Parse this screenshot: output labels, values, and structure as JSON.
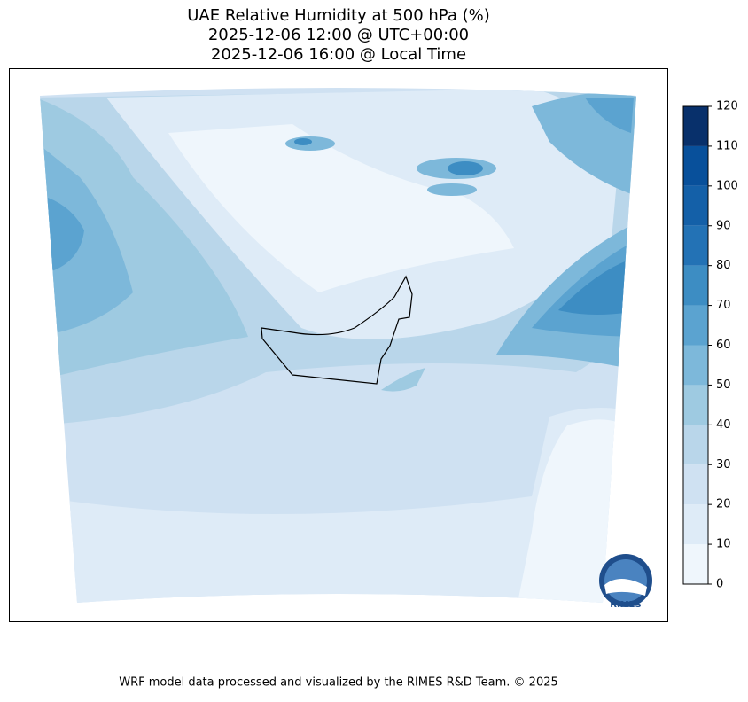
{
  "title": [
    "UAE Relative Humidity at 500 hPa (%)",
    "2025-12-06 12:00 @ UTC+00:00",
    "2025-12-06 16:00 @ Local Time"
  ],
  "colorbar": {
    "ticks": [
      0,
      10,
      20,
      30,
      40,
      50,
      60,
      70,
      80,
      90,
      100,
      110,
      120
    ],
    "colors": [
      "#eff6fc",
      "#deebf7",
      "#cfe1f2",
      "#b9d6ea",
      "#9ecae1",
      "#7db8da",
      "#5ba3d0",
      "#3d8dc3",
      "#2372b5",
      "#1460a8",
      "#08509b",
      "#08306b"
    ]
  },
  "logo": {
    "label": "RIMES"
  },
  "footer": "WRF model data processed and visualized by the RIMES R&D Team. © 2025"
}
